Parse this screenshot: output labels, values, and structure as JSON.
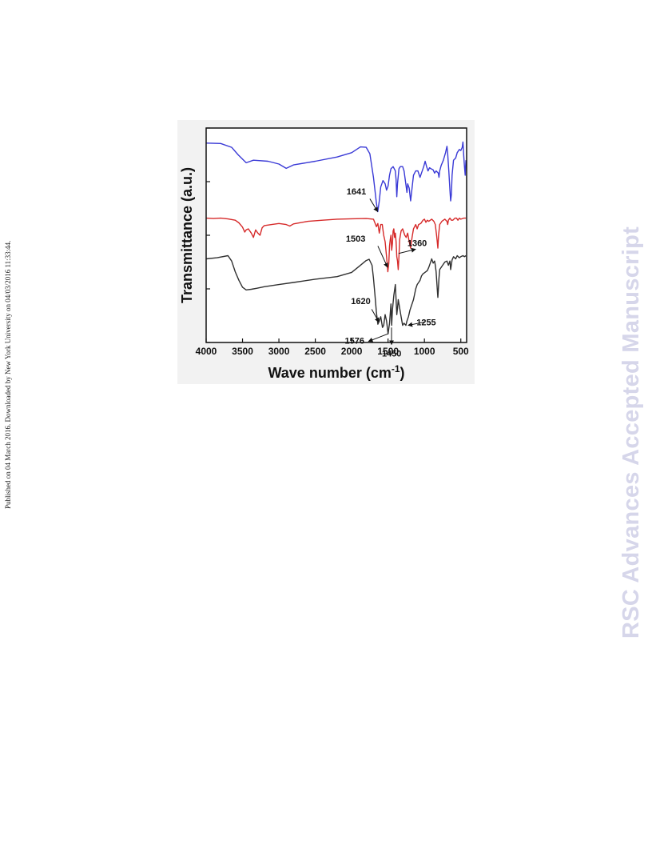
{
  "side_note": "Published on 04 March 2016. Downloaded by New York University on 04/03/2016 11:33:44.",
  "watermark": "RSC Advances Accepted Manuscript",
  "chart_data": {
    "type": "line",
    "xlabel": "Wave number (cm",
    "xlabel_sup": "-1",
    "xlabel_close": ")",
    "ylabel": "Transmittance (a.u.)",
    "xlim": [
      4000,
      420
    ],
    "ylim": [
      0,
      100
    ],
    "x_ticks": [
      {
        "value": 4000,
        "label": "4000"
      },
      {
        "value": 3500,
        "label": "3500"
      },
      {
        "value": 3000,
        "label": "3000"
      },
      {
        "value": 2500,
        "label": "2500"
      },
      {
        "value": 2000,
        "label": "2000"
      },
      {
        "value": 1500,
        "label": "1500"
      },
      {
        "value": 1000,
        "label": "1000"
      },
      {
        "value": 500,
        "label": "500"
      }
    ],
    "y_ticks": [
      0,
      25,
      50,
      75,
      100
    ],
    "grid": false,
    "legend": "none",
    "series": [
      {
        "color": "#3a3ad6",
        "points": [
          [
            4000,
            93
          ],
          [
            3800,
            92.8
          ],
          [
            3650,
            91
          ],
          [
            3560,
            87.5
          ],
          [
            3450,
            83.8
          ],
          [
            3350,
            85
          ],
          [
            3150,
            84.5
          ],
          [
            3000,
            83.2
          ],
          [
            2900,
            81.2
          ],
          [
            2800,
            82.8
          ],
          [
            2500,
            84.5
          ],
          [
            2200,
            86.5
          ],
          [
            2000,
            88.5
          ],
          [
            1880,
            91.2
          ],
          [
            1800,
            91
          ],
          [
            1750,
            88
          ],
          [
            1700,
            77
          ],
          [
            1660,
            65
          ],
          [
            1641,
            61
          ],
          [
            1620,
            66
          ],
          [
            1600,
            72.5
          ],
          [
            1570,
            75.5
          ],
          [
            1540,
            74
          ],
          [
            1520,
            71
          ],
          [
            1500,
            73
          ],
          [
            1480,
            78
          ],
          [
            1460,
            81
          ],
          [
            1430,
            82
          ],
          [
            1400,
            80
          ],
          [
            1390,
            76
          ],
          [
            1380,
            68
          ],
          [
            1370,
            74
          ],
          [
            1350,
            81
          ],
          [
            1330,
            82
          ],
          [
            1300,
            82
          ],
          [
            1280,
            80
          ],
          [
            1260,
            75
          ],
          [
            1240,
            70
          ],
          [
            1230,
            74
          ],
          [
            1210,
            72
          ],
          [
            1190,
            66
          ],
          [
            1170,
            72
          ],
          [
            1150,
            78
          ],
          [
            1120,
            80
          ],
          [
            1090,
            80
          ],
          [
            1060,
            77
          ],
          [
            1040,
            79
          ],
          [
            1010,
            82
          ],
          [
            990,
            84.5
          ],
          [
            970,
            82
          ],
          [
            950,
            80
          ],
          [
            930,
            81.5
          ],
          [
            910,
            81
          ],
          [
            880,
            80.5
          ],
          [
            860,
            79
          ],
          [
            840,
            80
          ],
          [
            810,
            79
          ],
          [
            800,
            77
          ],
          [
            790,
            80
          ],
          [
            770,
            82.5
          ],
          [
            740,
            85
          ],
          [
            710,
            88.5
          ],
          [
            690,
            91.5
          ],
          [
            680,
            88
          ],
          [
            665,
            80
          ],
          [
            650,
            71
          ],
          [
            640,
            66
          ],
          [
            630,
            69
          ],
          [
            620,
            78
          ],
          [
            600,
            85
          ],
          [
            570,
            86
          ],
          [
            550,
            88.5
          ],
          [
            520,
            90
          ],
          [
            500,
            89.5
          ],
          [
            480,
            91
          ],
          [
            470,
            93.5
          ],
          [
            460,
            87
          ],
          [
            450,
            82
          ],
          [
            440,
            78
          ],
          [
            430,
            85
          ]
        ]
      },
      {
        "color": "#d62a2a",
        "points": [
          [
            4000,
            58
          ],
          [
            3900,
            57.8
          ],
          [
            3800,
            58
          ],
          [
            3700,
            57.6
          ],
          [
            3600,
            57
          ],
          [
            3550,
            55.8
          ],
          [
            3500,
            53.8
          ],
          [
            3470,
            51.5
          ],
          [
            3450,
            52.5
          ],
          [
            3420,
            53
          ],
          [
            3380,
            51
          ],
          [
            3350,
            49
          ],
          [
            3320,
            52.5
          ],
          [
            3290,
            51
          ],
          [
            3260,
            50
          ],
          [
            3230,
            53.5
          ],
          [
            3200,
            54.5
          ],
          [
            3100,
            55
          ],
          [
            3000,
            55.5
          ],
          [
            2900,
            55
          ],
          [
            2850,
            54.3
          ],
          [
            2800,
            55.3
          ],
          [
            2600,
            56.5
          ],
          [
            2400,
            57
          ],
          [
            2200,
            57.5
          ],
          [
            2000,
            57.7
          ],
          [
            1800,
            57.8
          ],
          [
            1700,
            57.5
          ],
          [
            1660,
            54
          ],
          [
            1640,
            55.5
          ],
          [
            1620,
            51
          ],
          [
            1600,
            55
          ],
          [
            1580,
            55
          ],
          [
            1560,
            50
          ],
          [
            1540,
            47
          ],
          [
            1520,
            40
          ],
          [
            1503,
            33
          ],
          [
            1490,
            37
          ],
          [
            1480,
            45
          ],
          [
            1470,
            48
          ],
          [
            1460,
            50
          ],
          [
            1450,
            43
          ],
          [
            1440,
            46
          ],
          [
            1430,
            52
          ],
          [
            1420,
            53
          ],
          [
            1410,
            49
          ],
          [
            1400,
            51
          ],
          [
            1390,
            47
          ],
          [
            1380,
            40
          ],
          [
            1370,
            38
          ],
          [
            1360,
            34
          ],
          [
            1350,
            40
          ],
          [
            1340,
            48
          ],
          [
            1320,
            52
          ],
          [
            1300,
            53
          ],
          [
            1270,
            50
          ],
          [
            1250,
            49
          ],
          [
            1230,
            51
          ],
          [
            1210,
            47
          ],
          [
            1190,
            44
          ],
          [
            1170,
            49
          ],
          [
            1150,
            53
          ],
          [
            1120,
            55
          ],
          [
            1100,
            53
          ],
          [
            1080,
            55
          ],
          [
            1050,
            55.5
          ],
          [
            1020,
            57
          ],
          [
            1000,
            57.5
          ],
          [
            980,
            56
          ],
          [
            960,
            57
          ],
          [
            940,
            56.5
          ],
          [
            900,
            57.5
          ],
          [
            870,
            56.5
          ],
          [
            850,
            55
          ],
          [
            830,
            49
          ],
          [
            815,
            44
          ],
          [
            805,
            50
          ],
          [
            790,
            55
          ],
          [
            760,
            56.5
          ],
          [
            720,
            57.5
          ],
          [
            690,
            56.5
          ],
          [
            680,
            55
          ],
          [
            670,
            57
          ],
          [
            650,
            58
          ],
          [
            630,
            57
          ],
          [
            610,
            57
          ],
          [
            580,
            58
          ],
          [
            560,
            58
          ],
          [
            540,
            57
          ],
          [
            520,
            58
          ],
          [
            500,
            57.5
          ],
          [
            460,
            58
          ],
          [
            430,
            58
          ]
        ]
      },
      {
        "color": "#303030",
        "points": [
          [
            4000,
            39
          ],
          [
            3850,
            39.5
          ],
          [
            3700,
            40.5
          ],
          [
            3650,
            38
          ],
          [
            3600,
            33
          ],
          [
            3550,
            29
          ],
          [
            3500,
            25.8
          ],
          [
            3450,
            24.5
          ],
          [
            3380,
            24.8
          ],
          [
            3300,
            25.3
          ],
          [
            3200,
            26
          ],
          [
            3000,
            27
          ],
          [
            2800,
            28
          ],
          [
            2500,
            29.5
          ],
          [
            2200,
            30.7
          ],
          [
            2000,
            32.7
          ],
          [
            1900,
            35.4
          ],
          [
            1800,
            38.2
          ],
          [
            1760,
            38.8
          ],
          [
            1720,
            36
          ],
          [
            1700,
            30
          ],
          [
            1680,
            22
          ],
          [
            1660,
            14
          ],
          [
            1640,
            8.5
          ],
          [
            1620,
            10
          ],
          [
            1600,
            12
          ],
          [
            1576,
            7
          ],
          [
            1560,
            8
          ],
          [
            1540,
            13
          ],
          [
            1520,
            10
          ],
          [
            1500,
            4
          ],
          [
            1480,
            9
          ],
          [
            1460,
            18
          ],
          [
            1450,
            8
          ],
          [
            1440,
            15
          ],
          [
            1420,
            22
          ],
          [
            1400,
            27
          ],
          [
            1390,
            20
          ],
          [
            1380,
            13
          ],
          [
            1370,
            16
          ],
          [
            1360,
            20
          ],
          [
            1340,
            16
          ],
          [
            1320,
            12
          ],
          [
            1300,
            8
          ],
          [
            1280,
            9
          ],
          [
            1255,
            8
          ],
          [
            1240,
            10
          ],
          [
            1220,
            12
          ],
          [
            1200,
            15
          ],
          [
            1180,
            17
          ],
          [
            1150,
            20
          ],
          [
            1120,
            25
          ],
          [
            1100,
            27
          ],
          [
            1080,
            28
          ],
          [
            1060,
            29
          ],
          [
            1040,
            31
          ],
          [
            1020,
            32
          ],
          [
            1000,
            32.5
          ],
          [
            980,
            33
          ],
          [
            960,
            33.5
          ],
          [
            940,
            35
          ],
          [
            920,
            37
          ],
          [
            900,
            39
          ],
          [
            880,
            37
          ],
          [
            860,
            38
          ],
          [
            850,
            36
          ],
          [
            840,
            33
          ],
          [
            830,
            28
          ],
          [
            820,
            23
          ],
          [
            815,
            21
          ],
          [
            810,
            24
          ],
          [
            800,
            30
          ],
          [
            790,
            34
          ],
          [
            760,
            35.5
          ],
          [
            720,
            37.5
          ],
          [
            690,
            38
          ],
          [
            670,
            36
          ],
          [
            650,
            38
          ],
          [
            640,
            34
          ],
          [
            620,
            38.5
          ],
          [
            600,
            40
          ],
          [
            570,
            39
          ],
          [
            550,
            40.5
          ],
          [
            520,
            39.5
          ],
          [
            500,
            40
          ],
          [
            470,
            40.5
          ],
          [
            450,
            40
          ],
          [
            430,
            40.5
          ]
        ]
      }
    ],
    "annotations": [
      {
        "label": "1641",
        "x": 1935,
        "y": 69,
        "arrow_from": [
          1750,
          67
        ],
        "arrow_to": [
          1642,
          61
        ]
      },
      {
        "label": "1503",
        "x": 1945,
        "y": 47,
        "arrow_from": [
          1640,
          45
        ],
        "arrow_to": [
          1506,
          35
        ]
      },
      {
        "label": "1360",
        "x": 1100,
        "y": 45,
        "arrow_from": [
          1355,
          41.5
        ],
        "arrow_to": [
          1120,
          43.5
        ]
      },
      {
        "label": "1620",
        "x": 1875,
        "y": 18,
        "arrow_from": [
          1725,
          15.5
        ],
        "arrow_to": [
          1625,
          9.5
        ]
      },
      {
        "label": "1576",
        "x": 1960,
        "y": -0.5,
        "arrow_from": [
          1505,
          4
        ],
        "arrow_to": [
          1770,
          0.5
        ]
      },
      {
        "label": "1450",
        "x": 1450,
        "y": -6.5,
        "arrow_from": [
          1452,
          7
        ],
        "arrow_to": [
          1452,
          -1
        ]
      },
      {
        "label": "1255",
        "x": 975,
        "y": 8,
        "arrow_from": [
          1000,
          9.5
        ],
        "arrow_to": [
          1225,
          8
        ]
      }
    ]
  }
}
